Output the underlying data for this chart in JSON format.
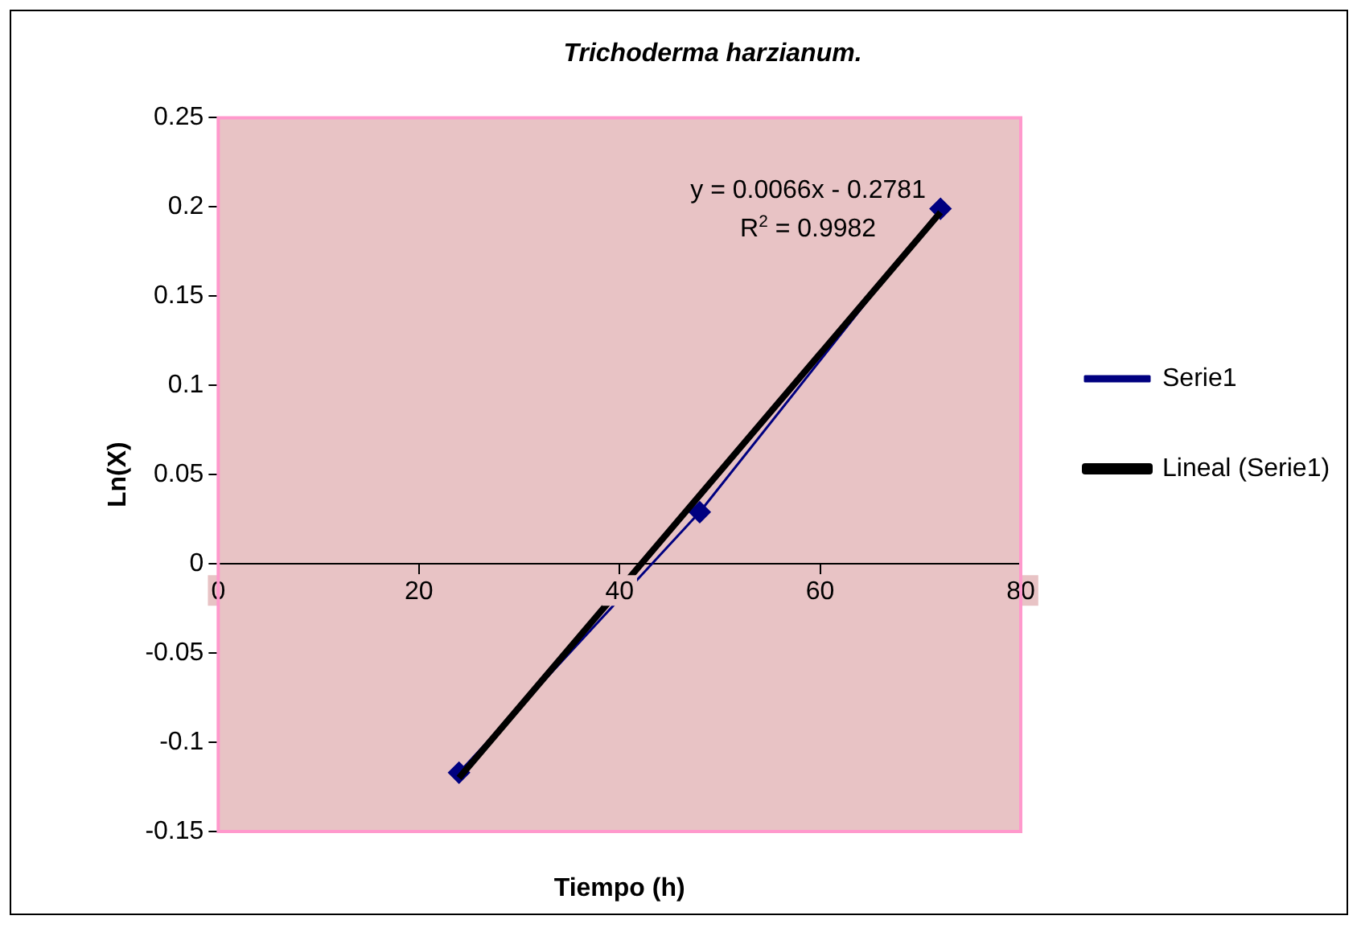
{
  "chart_data": {
    "type": "line",
    "title": "Trichoderma harzianum.",
    "xlabel": "Tiempo (h)",
    "ylabel": "Ln(X)",
    "x": [
      24,
      48,
      72
    ],
    "series": [
      {
        "name": "Serie1",
        "color": "#000080",
        "values": [
          -0.117,
          0.029,
          0.199
        ],
        "marker": "diamond"
      },
      {
        "name": "Lineal (Serie1)",
        "type": "line",
        "color": "#000000",
        "x": [
          24,
          72
        ],
        "values": [
          -0.12,
          0.197
        ],
        "marker": "none"
      }
    ],
    "xlim": [
      0,
      80
    ],
    "xticks": [
      0,
      20,
      40,
      60,
      80
    ],
    "ylim": [
      -0.15,
      0.25
    ],
    "yticks": [
      -0.15,
      -0.1,
      -0.05,
      0,
      0.05,
      0.1,
      0.15,
      0.2,
      0.25
    ],
    "annotations": [
      "y = 0.0066x - 0.2781",
      "R$^{2}$ = 0.9982"
    ],
    "grid": false,
    "legend": "right"
  }
}
